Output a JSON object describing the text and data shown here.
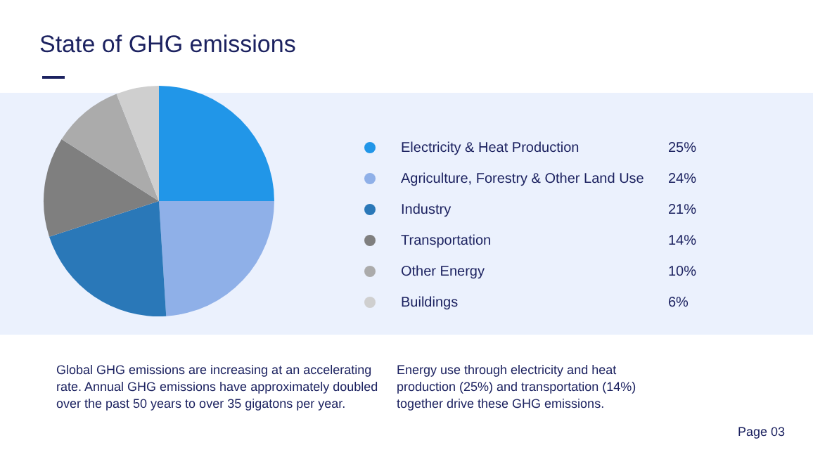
{
  "chart_data": {
    "type": "pie",
    "title": "State of GHG emissions",
    "categories": [
      "Electricity & Heat Production",
      "Agriculture, Forestry & Other Land Use",
      "Industry",
      "Transportation",
      "Other Energy",
      "Buildings"
    ],
    "values": [
      25,
      24,
      21,
      14,
      10,
      6
    ],
    "colors": [
      "#2196e8",
      "#8fb0e8",
      "#2a78b8",
      "#7f7f7f",
      "#ababab",
      "#cfcfcf"
    ],
    "value_labels": [
      "25%",
      "24%",
      "21%",
      "14%",
      "10%",
      "6%"
    ],
    "legend": "right",
    "annotations": [
      "Global GHG emissions are increasing at an accelerating rate. Annual GHG emissions have approximately doubled over the past 50 years to over 35 gigatons per year.",
      "Energy use through electricity and heat production (25%) and transportation (14%) together drive these GHG emissions.",
      "Page 03"
    ]
  }
}
